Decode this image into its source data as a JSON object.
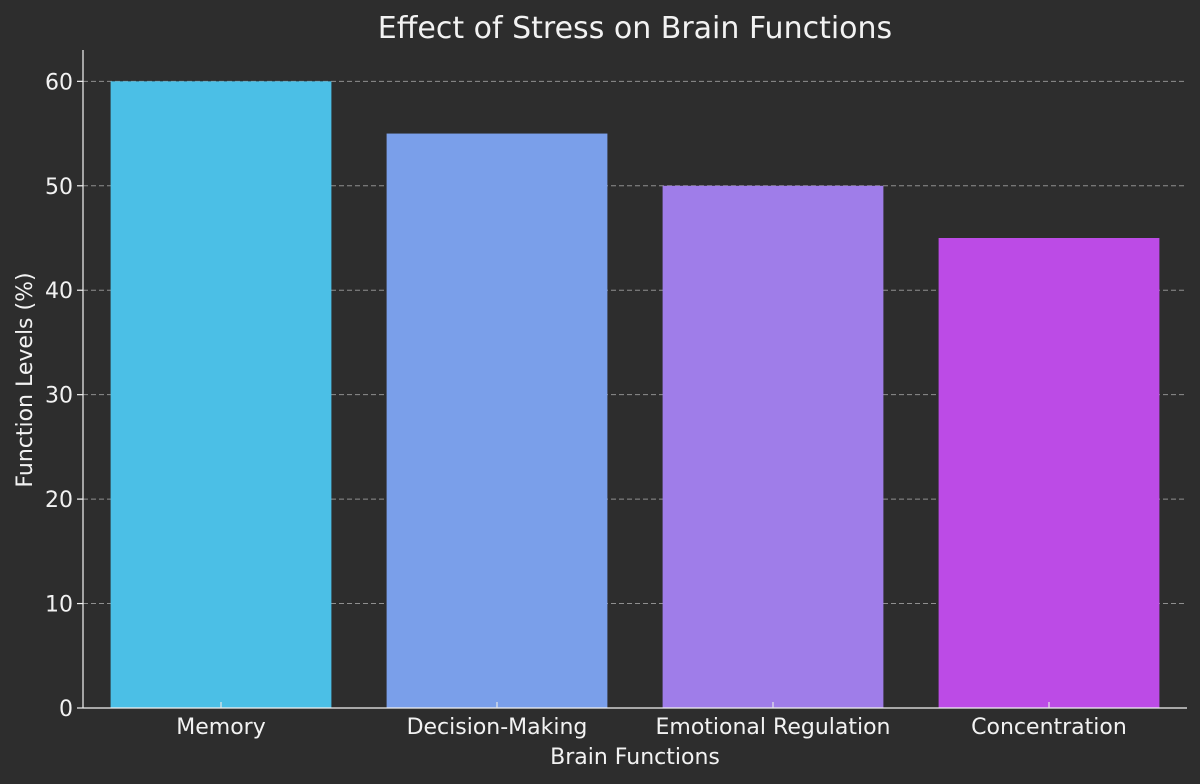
{
  "chart_data": {
    "type": "bar",
    "title": "Effect of Stress on Brain Functions",
    "xlabel": "Brain Functions",
    "ylabel": "Function Levels (%)",
    "categories": [
      "Memory",
      "Decision-Making",
      "Emotional Regulation",
      "Concentration"
    ],
    "values": [
      60,
      55,
      50,
      45
    ],
    "colors": [
      "#4bbfe6",
      "#7a9fea",
      "#9f7de9",
      "#bc4be6"
    ],
    "ylim": [
      0,
      63
    ],
    "yticks": [
      0,
      10,
      20,
      30,
      40,
      50,
      60
    ],
    "grid": {
      "y": true,
      "x": false,
      "style": "dashed"
    },
    "legend": "none",
    "background": "#2d2d2d",
    "text_color": "#f2f2f2"
  }
}
